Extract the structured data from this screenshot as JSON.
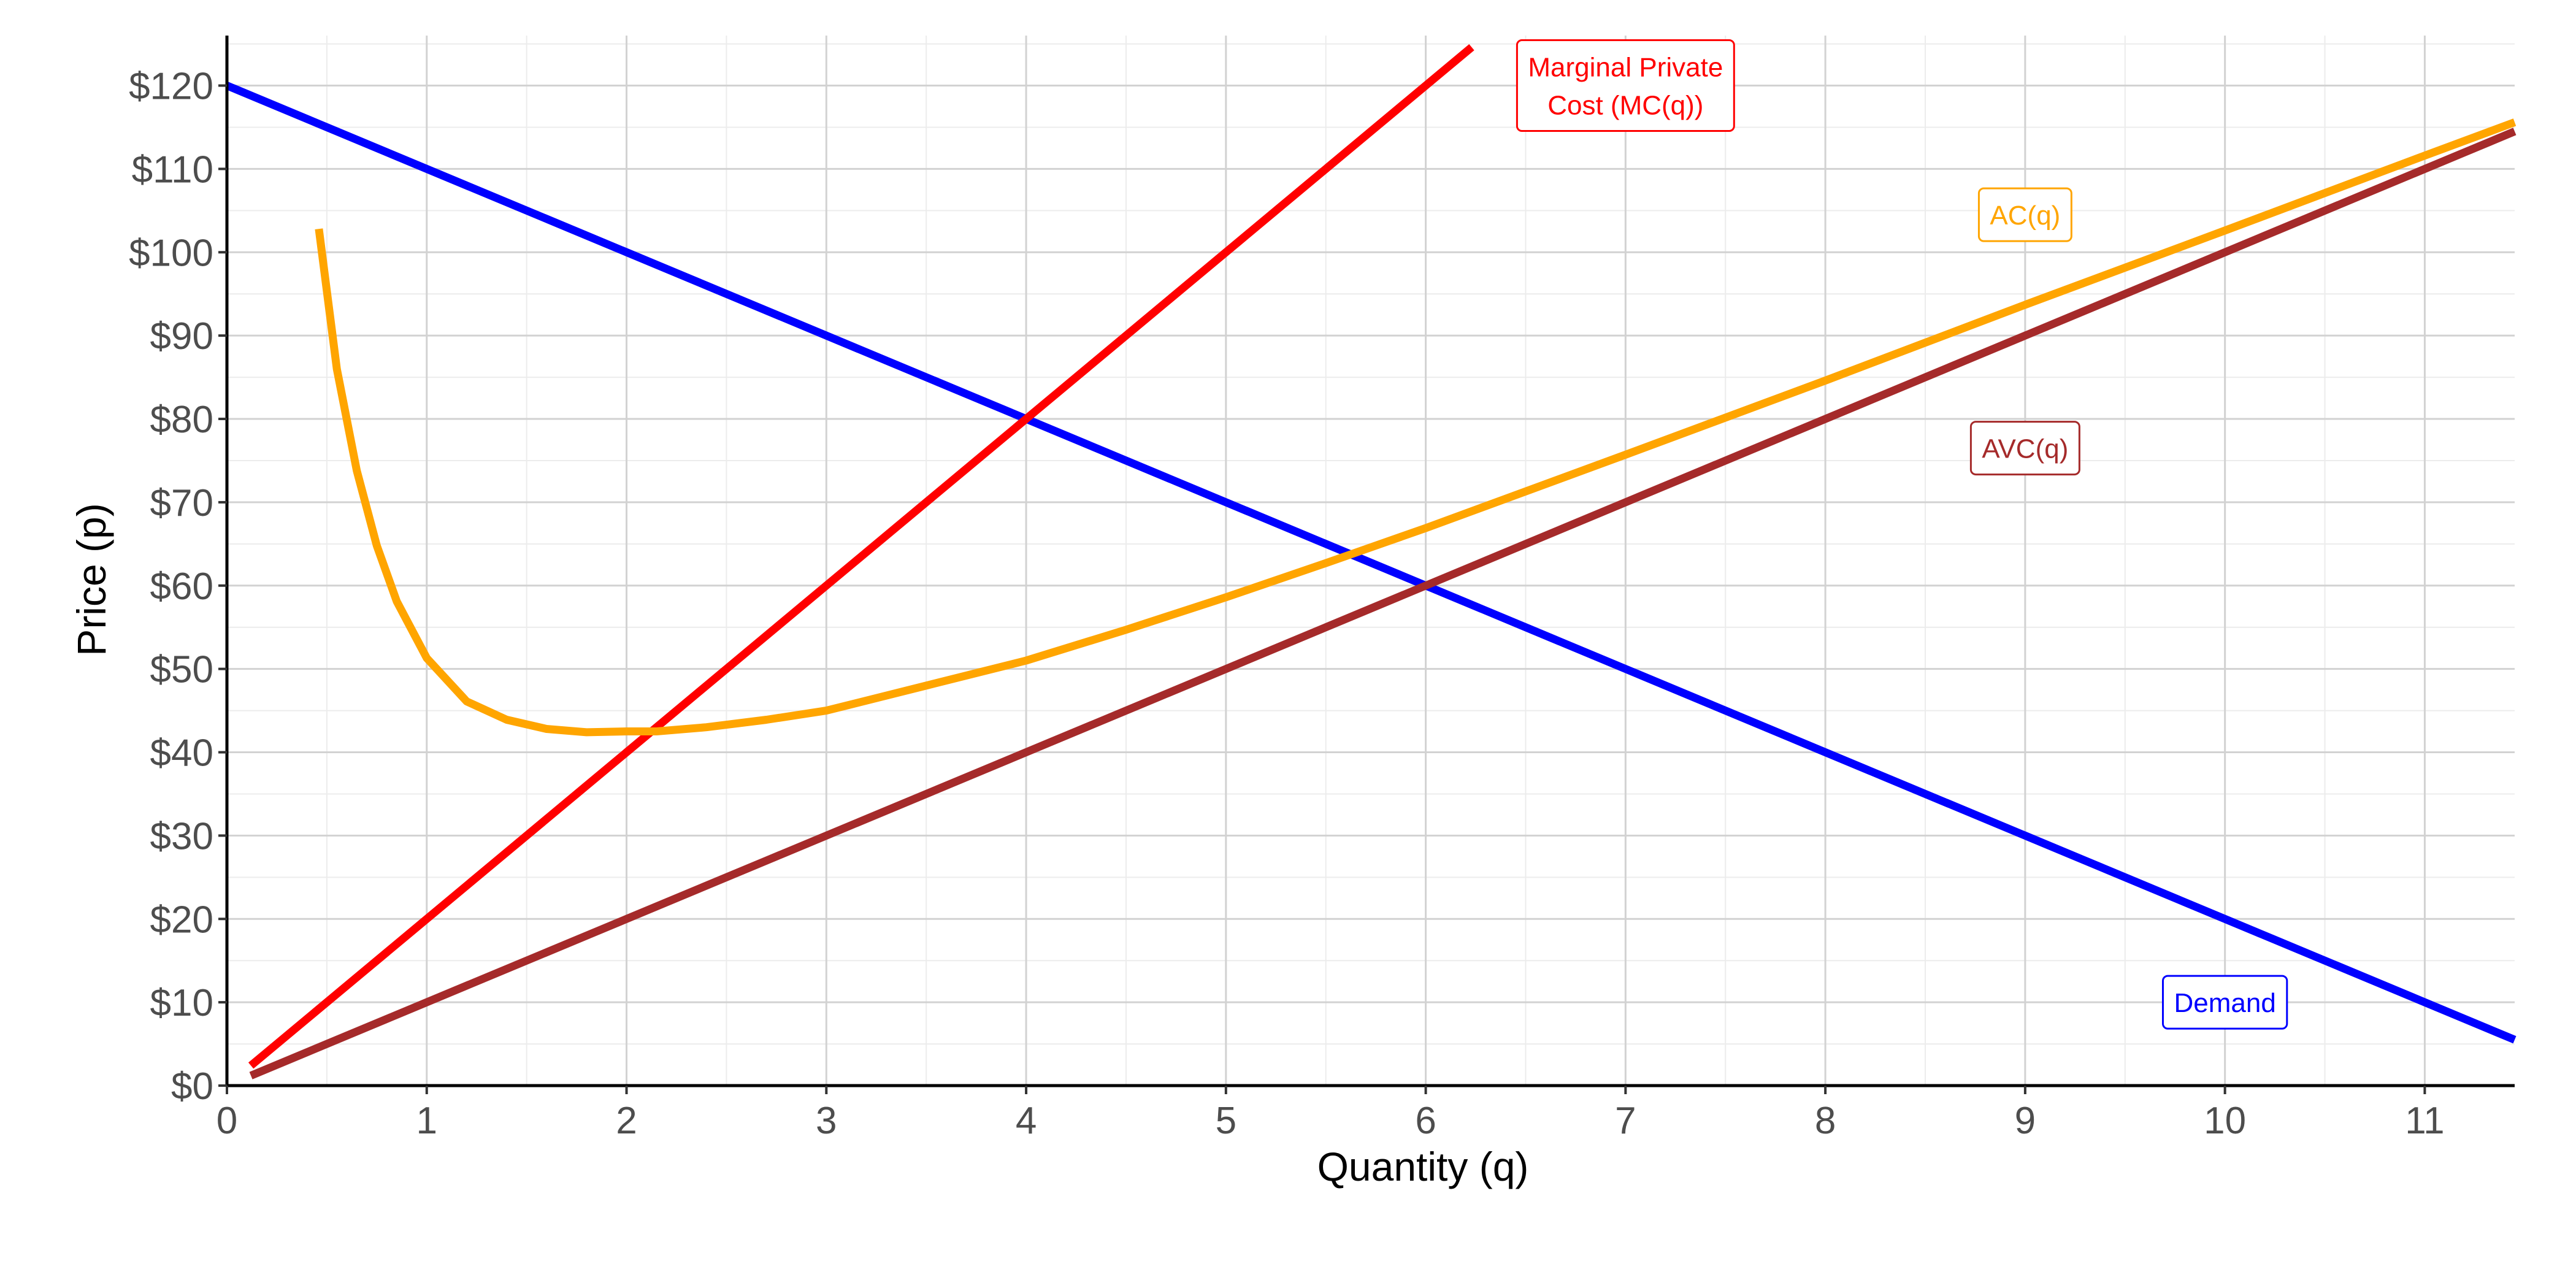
{
  "chart_data": {
    "type": "line",
    "title": "",
    "xlabel": "Quantity (q)",
    "ylabel": "Price (p)",
    "xlim": [
      0,
      11.45
    ],
    "ylim": [
      0,
      126
    ],
    "x_ticks": [
      0,
      1,
      2,
      3,
      4,
      5,
      6,
      7,
      8,
      9,
      10,
      11
    ],
    "x_tick_labels": [
      "0",
      "1",
      "2",
      "3",
      "4",
      "5",
      "6",
      "7",
      "8",
      "9",
      "10",
      "11"
    ],
    "y_ticks": [
      0,
      10,
      20,
      30,
      40,
      50,
      60,
      70,
      80,
      90,
      100,
      110,
      120
    ],
    "y_tick_labels": [
      "$0",
      "$10",
      "$20",
      "$30",
      "$40",
      "$50",
      "$60",
      "$70",
      "$80",
      "$90",
      "$100",
      "$110",
      "$120"
    ],
    "grid": true,
    "legend": "none",
    "series": [
      {
        "name": "Demand",
        "color": "#0000ff",
        "label_pos": [
          10,
          10
        ],
        "x": [
          0,
          11.45
        ],
        "y": [
          120,
          5.5
        ]
      },
      {
        "name": "Marginal Private\nCost (MC(q))",
        "color": "#ff0000",
        "label_pos": [
          7,
          120
        ],
        "x": [
          0.12,
          6.23
        ],
        "y": [
          2.4,
          124.6
        ]
      },
      {
        "name": "AVC(q)",
        "color": "#a52a2a",
        "label_pos": [
          9,
          76.5
        ],
        "x": [
          0.12,
          11.45
        ],
        "y": [
          1.2,
          114.5
        ]
      },
      {
        "name": "AC(q)",
        "color": "#ffa500",
        "label_pos": [
          9,
          104.5
        ],
        "x": [
          0.46,
          0.55,
          0.65,
          0.75,
          0.85,
          1.0,
          1.2,
          1.4,
          1.6,
          1.8,
          2.0,
          2.15,
          2.4,
          2.7,
          3.0,
          3.5,
          4.0,
          4.5,
          5.0,
          5.5,
          6.0,
          7.0,
          8.0,
          9.0,
          10.0,
          11.0,
          11.45
        ],
        "y": [
          102.8,
          86.0,
          73.8,
          64.8,
          58.1,
          51.3,
          46.1,
          43.9,
          42.8,
          42.4,
          42.5,
          42.5,
          43.0,
          43.9,
          45.0,
          48.0,
          51.0,
          54.7,
          58.6,
          62.7,
          66.9,
          75.7,
          84.6,
          93.7,
          102.6,
          111.6,
          115.6
        ]
      }
    ]
  }
}
